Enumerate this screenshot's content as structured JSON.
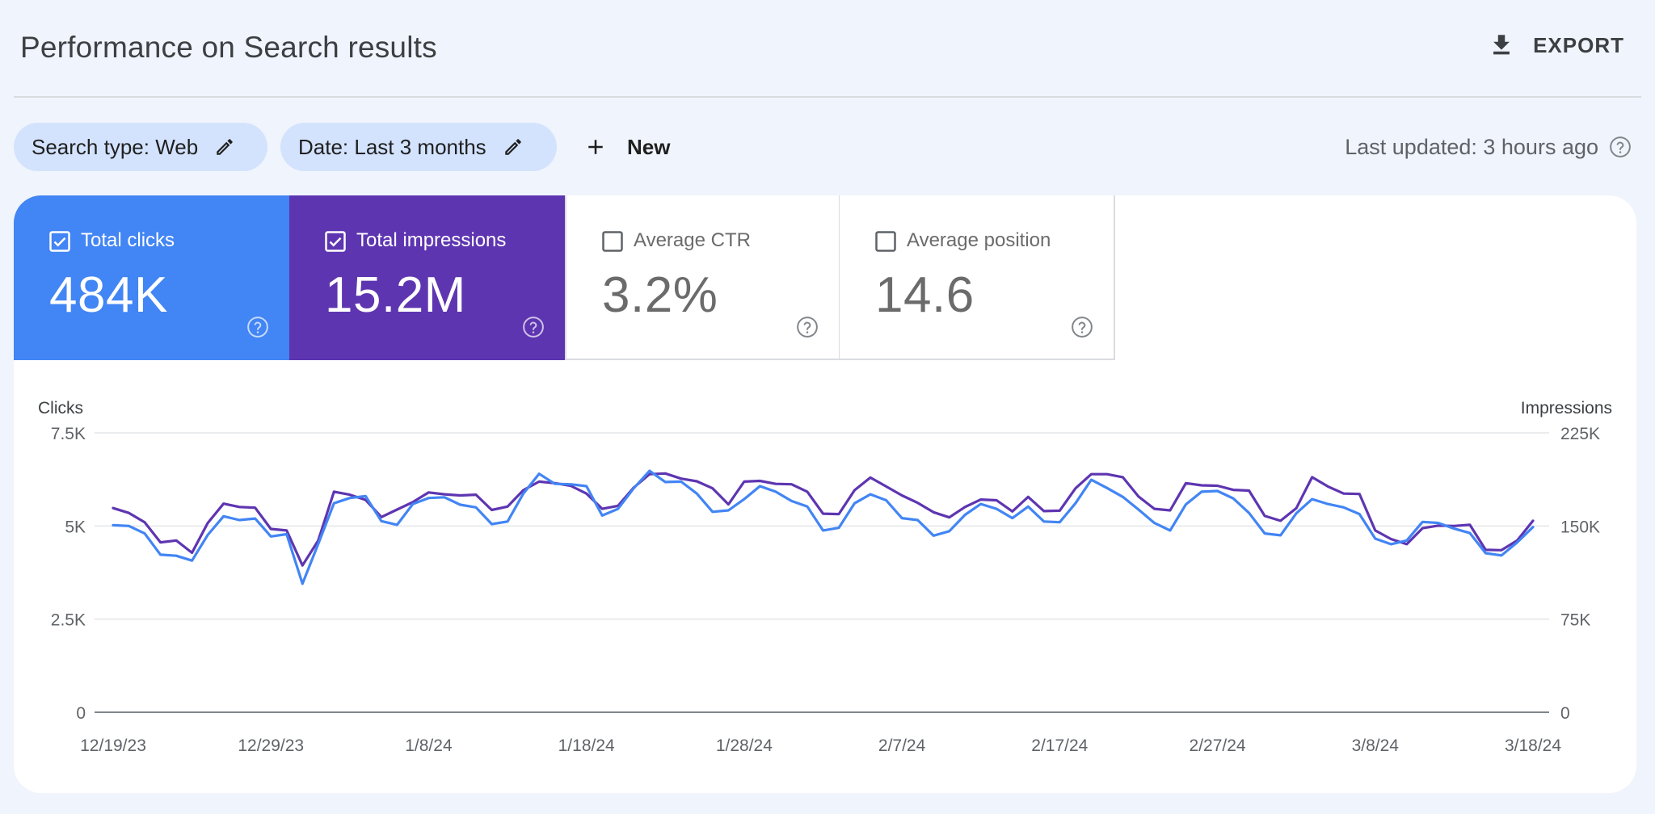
{
  "header": {
    "title": "Performance on Search results",
    "export_label": "EXPORT"
  },
  "filters": {
    "search_type": "Search type: Web",
    "date": "Date: Last 3 months",
    "new_label": "New",
    "last_updated": "Last updated: 3 hours ago"
  },
  "metrics": [
    {
      "label": "Total clicks",
      "value": "484K",
      "checked": true,
      "color": "#4285f4"
    },
    {
      "label": "Total impressions",
      "value": "15.2M",
      "checked": true,
      "color": "#5e35b1"
    },
    {
      "label": "Average CTR",
      "value": "3.2%",
      "checked": false,
      "color": "#ffffff"
    },
    {
      "label": "Average position",
      "value": "14.6",
      "checked": false,
      "color": "#ffffff"
    }
  ],
  "icons": {
    "export": "download-icon",
    "edit": "pencil-icon",
    "add": "plus-icon",
    "help": "help-circle-icon",
    "checkbox": "checkbox-icon"
  },
  "chart_data": {
    "type": "line",
    "title": "",
    "xlabel": "",
    "ylabel_left": "Clicks",
    "ylabel_right": "Impressions",
    "ylim_left": [
      0,
      7500
    ],
    "ylim_right": [
      0,
      225000
    ],
    "yticks_left": [
      "7.5K",
      "5K",
      "2.5K",
      "0"
    ],
    "yticks_left_values": [
      7500,
      5000,
      2500,
      0
    ],
    "yticks_right": [
      "225K",
      "150K",
      "75K",
      "0"
    ],
    "yticks_right_values": [
      225000,
      150000,
      75000,
      0
    ],
    "x_tick_labels": [
      "12/19/23",
      "12/29/23",
      "1/8/24",
      "1/18/24",
      "1/28/24",
      "2/7/24",
      "2/17/24",
      "2/27/24",
      "3/8/24",
      "3/18/24"
    ],
    "x": [
      "12/19/23",
      "12/20/23",
      "12/21/23",
      "12/22/23",
      "12/23/23",
      "12/24/23",
      "12/25/23",
      "12/26/23",
      "12/27/23",
      "12/28/23",
      "12/29/23",
      "12/30/23",
      "12/31/23",
      "1/1/24",
      "1/2/24",
      "1/3/24",
      "1/4/24",
      "1/5/24",
      "1/6/24",
      "1/7/24",
      "1/8/24",
      "1/9/24",
      "1/10/24",
      "1/11/24",
      "1/12/24",
      "1/13/24",
      "1/14/24",
      "1/15/24",
      "1/16/24",
      "1/17/24",
      "1/18/24",
      "1/19/24",
      "1/20/24",
      "1/21/24",
      "1/22/24",
      "1/23/24",
      "1/24/24",
      "1/25/24",
      "1/26/24",
      "1/27/24",
      "1/28/24",
      "1/29/24",
      "1/30/24",
      "1/31/24",
      "2/1/24",
      "2/2/24",
      "2/3/24",
      "2/4/24",
      "2/5/24",
      "2/6/24",
      "2/7/24",
      "2/8/24",
      "2/9/24",
      "2/10/24",
      "2/11/24",
      "2/12/24",
      "2/13/24",
      "2/14/24",
      "2/15/24",
      "2/16/24",
      "2/17/24",
      "2/18/24",
      "2/19/24",
      "2/20/24",
      "2/21/24",
      "2/22/24",
      "2/23/24",
      "2/24/24",
      "2/25/24",
      "2/26/24",
      "2/27/24",
      "2/28/24",
      "2/29/24",
      "3/1/24",
      "3/2/24",
      "3/3/24",
      "3/4/24",
      "3/5/24",
      "3/6/24",
      "3/7/24",
      "3/8/24",
      "3/9/24",
      "3/10/24",
      "3/11/24",
      "3/12/24",
      "3/13/24",
      "3/14/24",
      "3/15/24",
      "3/16/24",
      "3/17/24",
      "3/18/24"
    ],
    "grid": true,
    "legend": "none",
    "series": [
      {
        "name": "Clicks",
        "axis": "left",
        "color": "#4285f4",
        "values": [
          5020,
          5000,
          4800,
          4230,
          4200,
          4070,
          4760,
          5260,
          5160,
          5200,
          4720,
          4780,
          3450,
          4520,
          5610,
          5750,
          5800,
          5130,
          5030,
          5590,
          5750,
          5770,
          5570,
          5500,
          5050,
          5120,
          5870,
          6400,
          6130,
          6120,
          6070,
          5280,
          5460,
          6010,
          6480,
          6180,
          6190,
          5870,
          5380,
          5420,
          5720,
          6070,
          5920,
          5670,
          5520,
          4880,
          4950,
          5610,
          5850,
          5690,
          5210,
          5160,
          4740,
          4860,
          5300,
          5590,
          5460,
          5210,
          5520,
          5120,
          5100,
          5610,
          6240,
          6020,
          5780,
          5440,
          5080,
          4880,
          5580,
          5920,
          5940,
          5740,
          5350,
          4800,
          4750,
          5340,
          5720,
          5590,
          5500,
          5320,
          4660,
          4510,
          4610,
          5110,
          5080,
          4930,
          4810,
          4270,
          4210,
          4560,
          4970
        ]
      },
      {
        "name": "Impressions",
        "axis": "right",
        "color": "#5e35b1",
        "values": [
          164400,
          160500,
          153000,
          136800,
          138300,
          128400,
          152400,
          168000,
          165300,
          164700,
          147600,
          146400,
          118200,
          138300,
          177600,
          175200,
          171000,
          157200,
          163200,
          169200,
          177000,
          175500,
          174600,
          175200,
          162900,
          165600,
          178800,
          185700,
          184500,
          182400,
          176100,
          163800,
          166200,
          180900,
          191700,
          192300,
          188100,
          186000,
          180300,
          167400,
          185700,
          186300,
          183900,
          183600,
          177600,
          159900,
          159600,
          178800,
          189000,
          181800,
          174600,
          168600,
          161100,
          156900,
          165300,
          171300,
          170700,
          161700,
          173400,
          162000,
          162300,
          180300,
          191700,
          191700,
          189300,
          173700,
          163800,
          162600,
          184500,
          182700,
          182400,
          179100,
          178500,
          158100,
          154200,
          164400,
          189300,
          181800,
          176100,
          175800,
          146400,
          139500,
          135300,
          148200,
          150300,
          150000,
          150900,
          130800,
          130500,
          138300,
          154200
        ]
      }
    ]
  }
}
